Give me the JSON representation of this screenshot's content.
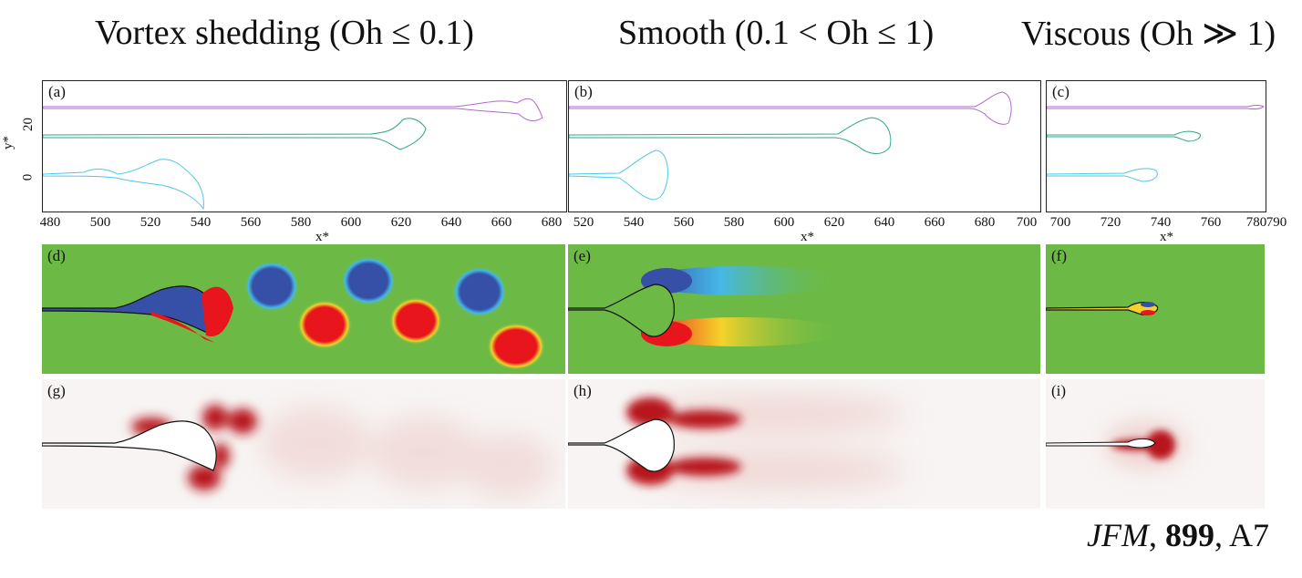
{
  "regimes": [
    {
      "label": "Vortex shedding",
      "condition": "(Oh ≤ 0.1)",
      "math": "Oh ≤ 0.1"
    },
    {
      "label": "Smooth",
      "condition": "(0.1 < Oh ≤ 1)",
      "math": "0.1 < Oh ≤ 1"
    },
    {
      "label": "Viscous",
      "condition": "(Oh ≫ 1)",
      "math": "Oh ≫ 1"
    }
  ],
  "panel_labels": {
    "a": "(a)",
    "b": "(b)",
    "c": "(c)",
    "d": "(d)",
    "e": "(e)",
    "f": "(f)",
    "g": "(g)",
    "h": "(h)",
    "i": "(i)"
  },
  "axes": {
    "xlabel": "x*",
    "ylabel": "y*",
    "y_ticks": [
      "0",
      "20"
    ],
    "a_ticks": [
      "480",
      "500",
      "520",
      "540",
      "560",
      "580",
      "600",
      "620",
      "640",
      "660",
      "680"
    ],
    "b_ticks": [
      "520",
      "540",
      "560",
      "580",
      "600",
      "620",
      "640",
      "660",
      "680",
      "700"
    ],
    "c_ticks": [
      "700",
      "720",
      "740",
      "760",
      "780",
      "790"
    ]
  },
  "colors": {
    "contour_cyan": "#4fc6e8",
    "contour_green": "#2fa58a",
    "contour_purple": "#b06ac8",
    "vorticity_background": "#6cba45",
    "vorticity_positive": "#e8151d",
    "vorticity_negative": "#3650a8",
    "dissipation": "#b8151f"
  },
  "citation": {
    "journal": "JFM",
    "volume": "899",
    "article": "A7"
  }
}
